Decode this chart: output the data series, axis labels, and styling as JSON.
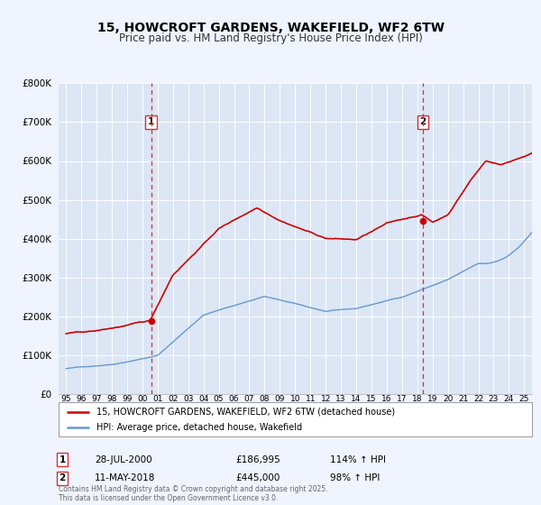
{
  "title": "15, HOWCROFT GARDENS, WAKEFIELD, WF2 6TW",
  "subtitle": "Price paid vs. HM Land Registry's House Price Index (HPI)",
  "ylim": [
    0,
    800000
  ],
  "yticks": [
    0,
    100000,
    200000,
    300000,
    400000,
    500000,
    600000,
    700000,
    800000
  ],
  "ytick_labels": [
    "£0",
    "£100K",
    "£200K",
    "£300K",
    "£400K",
    "£500K",
    "£600K",
    "£700K",
    "£800K"
  ],
  "xlim": [
    1994.5,
    2025.5
  ],
  "xticks": [
    1995,
    1996,
    1997,
    1998,
    1999,
    2000,
    2001,
    2002,
    2003,
    2004,
    2005,
    2006,
    2007,
    2008,
    2009,
    2010,
    2011,
    2012,
    2013,
    2014,
    2015,
    2016,
    2017,
    2018,
    2019,
    2020,
    2021,
    2022,
    2023,
    2024,
    2025
  ],
  "background_color": "#f0f4ff",
  "plot_background": "#dce6f5",
  "grid_color": "#ffffff",
  "sale1_date": 2000.57,
  "sale1_price": 186995,
  "sale1_label": "1",
  "sale2_date": 2018.36,
  "sale2_price": 445000,
  "sale2_label": "2",
  "red_line_color": "#cc0000",
  "blue_line_color": "#6699cc",
  "marker_color": "#cc0000",
  "vline_color": "#cc3333",
  "legend_text1": "15, HOWCROFT GARDENS, WAKEFIELD, WF2 6TW (detached house)",
  "legend_text2": "HPI: Average price, detached house, Wakefield",
  "annotation1_date": "28-JUL-2000",
  "annotation1_price": "£186,995",
  "annotation1_hpi": "114% ↑ HPI",
  "annotation2_date": "11-MAY-2018",
  "annotation2_price": "£445,000",
  "annotation2_hpi": "98% ↑ HPI",
  "footer": "Contains HM Land Registry data © Crown copyright and database right 2025.\nThis data is licensed under the Open Government Licence v3.0.",
  "title_fontsize": 10,
  "subtitle_fontsize": 8.5
}
